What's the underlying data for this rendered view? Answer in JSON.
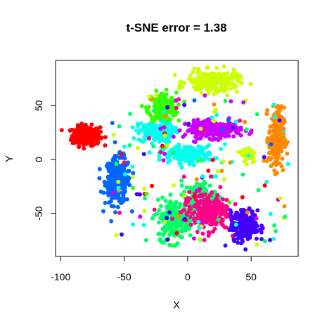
{
  "chart_data": {
    "type": "scatter",
    "title": "t-SNE error = 1.38",
    "xlabel": "X",
    "ylabel": "Y",
    "xlim": [
      -104,
      87
    ],
    "ylim": [
      -90,
      92
    ],
    "x_ticks": [
      -100,
      -50,
      0,
      50
    ],
    "y_ticks": [
      -50,
      0,
      50
    ],
    "x_tick_labels": [
      "-100",
      "-50",
      "0",
      "50"
    ],
    "y_tick_labels": [
      "-50",
      "0",
      "50"
    ],
    "grid": false,
    "legend": "none",
    "clusters": [
      {
        "color": "#ff0000",
        "center": [
          -80,
          22
        ],
        "spread": [
          11,
          9
        ],
        "count": 240
      },
      {
        "color": "#0066ff",
        "center": [
          -55,
          -20
        ],
        "spread": [
          10,
          22
        ],
        "count": 230
      },
      {
        "color": "#33ff00",
        "center": [
          -20,
          48
        ],
        "spread": [
          11,
          14
        ],
        "count": 230
      },
      {
        "color": "#00ffee",
        "center": [
          -25,
          25
        ],
        "spread": [
          14,
          9
        ],
        "count": 160
      },
      {
        "color": "#00ffee",
        "center": [
          0,
          5
        ],
        "spread": [
          20,
          8
        ],
        "count": 180
      },
      {
        "color": "#cc00ff",
        "center": [
          20,
          28
        ],
        "spread": [
          22,
          8
        ],
        "count": 210
      },
      {
        "color": "#ccff00",
        "center": [
          20,
          72
        ],
        "spread": [
          20,
          10
        ],
        "count": 200
      },
      {
        "color": "#ff8800",
        "center": [
          70,
          20
        ],
        "spread": [
          6,
          28
        ],
        "count": 230
      },
      {
        "color": "#ccff00",
        "center": [
          48,
          5
        ],
        "spread": [
          6,
          8
        ],
        "count": 50
      },
      {
        "color": "#00ff66",
        "center": [
          -10,
          -55
        ],
        "spread": [
          14,
          18
        ],
        "count": 220
      },
      {
        "color": "#00ff66",
        "center": [
          10,
          -35
        ],
        "spread": [
          12,
          14
        ],
        "count": 120
      },
      {
        "color": "#ff0088",
        "center": [
          15,
          -48
        ],
        "spread": [
          18,
          18
        ],
        "count": 230
      },
      {
        "color": "#4400ff",
        "center": [
          45,
          -62
        ],
        "spread": [
          11,
          14
        ],
        "count": 220
      }
    ],
    "background_noise": {
      "count": 160,
      "xlim": [
        -60,
        80
      ],
      "ylim": [
        -80,
        60
      ]
    },
    "point_radius": 3
  }
}
